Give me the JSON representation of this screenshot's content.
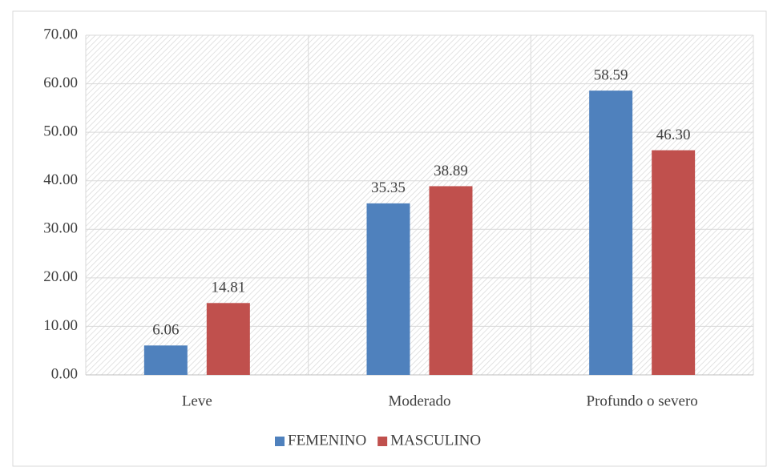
{
  "chart_data": {
    "type": "bar",
    "categories": [
      "Leve",
      "Moderado",
      "Profundo o severo"
    ],
    "series": [
      {
        "name": "FEMENINO",
        "color": "#4f81bd",
        "values": [
          6.06,
          35.35,
          58.59
        ],
        "value_labels": [
          "6.06",
          "35.35",
          "58.59"
        ]
      },
      {
        "name": "MASCULINO",
        "color": "#c0504d",
        "values": [
          14.81,
          38.89,
          46.3
        ],
        "value_labels": [
          "14.81",
          "38.89",
          "46.30"
        ]
      }
    ],
    "ylim": [
      0,
      70
    ],
    "yticks": [
      {
        "value": 0,
        "label": "0.00"
      },
      {
        "value": 10,
        "label": "10.00"
      },
      {
        "value": 20,
        "label": "20.00"
      },
      {
        "value": 30,
        "label": "30.00"
      },
      {
        "value": 40,
        "label": "40.00"
      },
      {
        "value": 50,
        "label": "50.00"
      },
      {
        "value": 60,
        "label": "60.00"
      },
      {
        "value": 70,
        "label": "70.00"
      }
    ],
    "grid": true,
    "legend": "bottom"
  }
}
